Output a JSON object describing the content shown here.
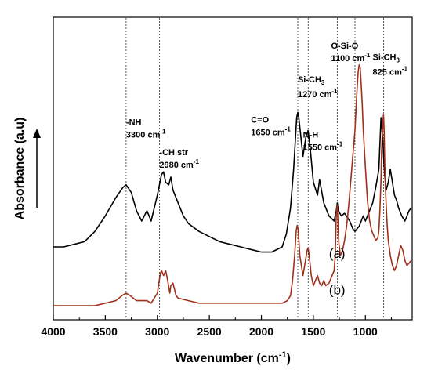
{
  "chart_data": {
    "type": "line",
    "xlabel": "Wavenumber (cm",
    "xlabel_sup": "-1",
    "xlabel_end": ")",
    "ylabel": "Absorbance (a.u)",
    "xlim": [
      4000,
      550
    ],
    "x_reversed": true,
    "y_ticks_shown": false,
    "grid": false,
    "x_ticks": [
      4000,
      3500,
      3000,
      2500,
      2000,
      1500,
      1000
    ],
    "x_tick_labels": [
      "4000",
      "3500",
      "3000",
      "2500",
      "2000",
      "1500",
      "1000"
    ],
    "series": [
      {
        "name": "(a)",
        "color": "#000000",
        "x": [
          4000,
          3900,
          3800,
          3700,
          3600,
          3500,
          3400,
          3330,
          3300,
          3250,
          3200,
          3150,
          3100,
          3060,
          3000,
          2960,
          2940,
          2920,
          2890,
          2870,
          2850,
          2800,
          2750,
          2700,
          2600,
          2500,
          2400,
          2300,
          2200,
          2100,
          2000,
          1900,
          1800,
          1760,
          1720,
          1690,
          1660,
          1650,
          1640,
          1600,
          1570,
          1550,
          1530,
          1500,
          1460,
          1440,
          1400,
          1350,
          1300,
          1280,
          1270,
          1260,
          1230,
          1200,
          1150,
          1120,
          1100,
          1080,
          1060,
          1040,
          1020,
          1000,
          960,
          930,
          900,
          870,
          850,
          830,
          825,
          815,
          800,
          780,
          760,
          720,
          700,
          680,
          650,
          620,
          600,
          580,
          560
        ],
        "y": [
          0.1,
          0.1,
          0.11,
          0.12,
          0.16,
          0.22,
          0.29,
          0.33,
          0.34,
          0.31,
          0.24,
          0.2,
          0.24,
          0.2,
          0.3,
          0.38,
          0.39,
          0.35,
          0.34,
          0.37,
          0.32,
          0.27,
          0.22,
          0.19,
          0.16,
          0.14,
          0.12,
          0.11,
          0.1,
          0.09,
          0.08,
          0.08,
          0.1,
          0.15,
          0.25,
          0.4,
          0.6,
          0.62,
          0.6,
          0.45,
          0.53,
          0.55,
          0.48,
          0.35,
          0.3,
          0.36,
          0.27,
          0.22,
          0.2,
          0.24,
          0.27,
          0.24,
          0.22,
          0.23,
          0.2,
          0.17,
          0.16,
          0.17,
          0.18,
          0.2,
          0.22,
          0.2,
          0.24,
          0.27,
          0.33,
          0.4,
          0.6,
          0.5,
          0.45,
          0.38,
          0.32,
          0.35,
          0.4,
          0.3,
          0.28,
          0.25,
          0.22,
          0.2,
          0.22,
          0.24,
          0.25
        ]
      },
      {
        "name": "(b)",
        "color": "#a0301c",
        "x": [
          4000,
          3800,
          3600,
          3500,
          3400,
          3340,
          3300,
          3260,
          3200,
          3150,
          3100,
          3060,
          3000,
          2970,
          2960,
          2940,
          2920,
          2900,
          2880,
          2870,
          2850,
          2820,
          2800,
          2700,
          2600,
          2400,
          2200,
          2000,
          1900,
          1800,
          1750,
          1720,
          1700,
          1680,
          1665,
          1655,
          1645,
          1630,
          1600,
          1580,
          1560,
          1550,
          1540,
          1520,
          1500,
          1480,
          1460,
          1440,
          1420,
          1400,
          1380,
          1350,
          1320,
          1300,
          1290,
          1280,
          1272,
          1265,
          1255,
          1240,
          1220,
          1200,
          1180,
          1160,
          1140,
          1120,
          1110,
          1100,
          1090,
          1080,
          1070,
          1060,
          1050,
          1040,
          1030,
          1020,
          1000,
          980,
          960,
          940,
          920,
          900,
          880,
          870,
          860,
          850,
          845,
          838,
          830,
          826,
          820,
          815,
          810,
          800,
          790,
          780,
          760,
          740,
          720,
          700,
          680,
          660,
          640,
          620,
          600,
          580,
          560
        ],
        "y": [
          0.0,
          0.0,
          0.0,
          0.01,
          0.02,
          0.04,
          0.05,
          0.04,
          0.02,
          0.02,
          0.02,
          0.01,
          0.05,
          0.13,
          0.14,
          0.12,
          0.14,
          0.1,
          0.05,
          0.08,
          0.09,
          0.04,
          0.03,
          0.02,
          0.01,
          0.01,
          0.01,
          0.01,
          0.01,
          0.01,
          0.02,
          0.04,
          0.1,
          0.2,
          0.3,
          0.32,
          0.3,
          0.2,
          0.12,
          0.17,
          0.22,
          0.23,
          0.2,
          0.12,
          0.08,
          0.1,
          0.12,
          0.09,
          0.08,
          0.1,
          0.08,
          0.09,
          0.12,
          0.14,
          0.2,
          0.36,
          0.4,
          0.35,
          0.25,
          0.2,
          0.22,
          0.26,
          0.32,
          0.4,
          0.5,
          0.6,
          0.65,
          0.7,
          0.78,
          0.86,
          0.93,
          0.96,
          0.95,
          0.88,
          0.8,
          0.7,
          0.55,
          0.42,
          0.34,
          0.3,
          0.28,
          0.26,
          0.27,
          0.3,
          0.38,
          0.5,
          0.6,
          0.68,
          0.74,
          0.76,
          0.7,
          0.6,
          0.5,
          0.4,
          0.32,
          0.26,
          0.2,
          0.16,
          0.14,
          0.16,
          0.2,
          0.24,
          0.22,
          0.18,
          0.16,
          0.17,
          0.18
        ]
      }
    ],
    "series_labels": [
      {
        "text": "(a)",
        "x": 1350,
        "y": 0.19
      },
      {
        "text": "(b)",
        "x": 1350,
        "y": 0.045
      }
    ],
    "reference_lines": [
      3300,
      2980,
      1650,
      1550,
      1270,
      1100,
      825
    ],
    "annotations": [
      {
        "lines": [
          {
            "main": "-NH"
          },
          {
            "main": "3300 cm",
            "sup": "-1"
          }
        ],
        "x": 3300,
        "y": 0.72
      },
      {
        "lines": [
          {
            "main": "-CH str"
          },
          {
            "main": "2980 cm",
            "sup": "-1"
          }
        ],
        "x": 2980,
        "y": 0.6
      },
      {
        "lines": [
          {
            "main": "C=O"
          },
          {
            "main": "1650 cm",
            "sup": "-1"
          }
        ],
        "x": 2100,
        "y": 0.73
      },
      {
        "lines": [
          {
            "main": "N-H"
          },
          {
            "main": "1550 cm",
            "sup": "-1"
          }
        ],
        "x": 1600,
        "y": 0.67
      },
      {
        "lines": [
          {
            "main": "Si-CH",
            "sub": "3"
          },
          {
            "main": "1270 cm",
            "sup": "-1"
          }
        ],
        "x": 1650,
        "y": 0.89
      },
      {
        "lines": [
          {
            "main": "O-Si-O"
          },
          {
            "main": "1100 cm",
            "sup": "-1"
          }
        ],
        "x": 1330,
        "y": 1.025
      },
      {
        "lines": [
          {
            "main": "Si-CH",
            "sub": "3"
          },
          {
            "main": "825 cm",
            "sup": "-1"
          }
        ],
        "x": 930,
        "y": 0.98
      }
    ]
  }
}
